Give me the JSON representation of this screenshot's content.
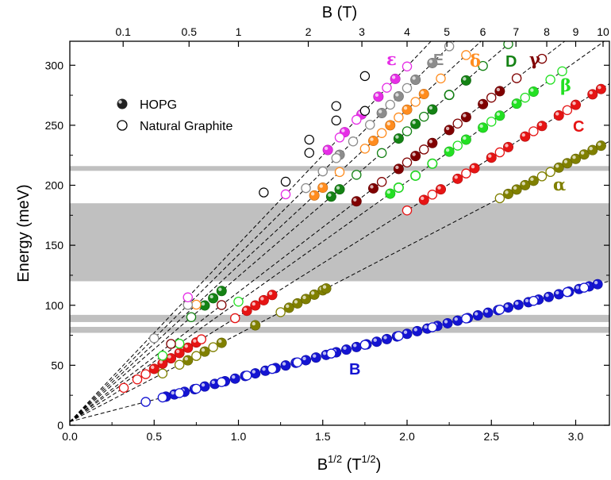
{
  "chart_data": {
    "type": "scatter",
    "title": "",
    "xlabel": "B",
    "xlabel_sup": "1/2",
    "xlabel_unit_open": " (T",
    "xlabel_unit_sup": "1/2",
    "xlabel_unit_close": ")",
    "ylabel": "Energy (meV)",
    "top_axis_label": "B (T)",
    "xlim": [
      0.0,
      3.2
    ],
    "ylim": [
      0,
      320
    ],
    "x_ticks": [
      0.0,
      0.5,
      1.0,
      1.5,
      2.0,
      2.5,
      3.0
    ],
    "x_tick_labels": [
      "0.0",
      "0.5",
      "1.0",
      "1.5",
      "2.0",
      "2.5",
      "3.0"
    ],
    "y_ticks": [
      0,
      50,
      100,
      150,
      200,
      250,
      300
    ],
    "y_tick_labels": [
      "0",
      "50",
      "100",
      "150",
      "200",
      "250",
      "300"
    ],
    "top_ticks": [
      0.1,
      0.5,
      1,
      2,
      3,
      4,
      5,
      6,
      7,
      8,
      9,
      10
    ],
    "top_tick_labels": [
      "0.1",
      "0.5",
      "1",
      "2",
      "3",
      "4",
      "5",
      "6",
      "7",
      "8",
      "9",
      "10"
    ],
    "legend": {
      "placement": "upper-left",
      "entries": [
        {
          "label": "HOPG",
          "marker": "filled-sphere"
        },
        {
          "label": "Natural Graphite",
          "marker": "open-circle"
        }
      ]
    },
    "excluded_bands": [
      [
        77,
        82
      ],
      [
        86,
        92
      ],
      [
        120,
        185
      ],
      [
        212,
        216
      ]
    ],
    "series": [
      {
        "name": "B",
        "label": "B",
        "color": "#1414d2",
        "slope": 36.6,
        "intercept": 3,
        "hopg_x": [
          0.57,
          0.62,
          0.68,
          0.74,
          0.8,
          0.86,
          0.92,
          0.98,
          1.04,
          1.1,
          1.16,
          1.22,
          1.28,
          1.34,
          1.4,
          1.46,
          1.52,
          1.58,
          1.64,
          1.7,
          1.76,
          1.82,
          1.88,
          1.94,
          2.0,
          2.06,
          2.12,
          2.18,
          2.24,
          2.3,
          2.36,
          2.42,
          2.48,
          2.54,
          2.6,
          2.66,
          2.72,
          2.78,
          2.84,
          2.9,
          2.96,
          3.02,
          3.08,
          3.13
        ],
        "ng_x": [
          0.45,
          0.55,
          0.65,
          0.75,
          0.9,
          1.05,
          1.2,
          1.35,
          1.55,
          1.75,
          1.95,
          2.15,
          2.35,
          2.55,
          2.75,
          2.95,
          3.05
        ]
      },
      {
        "name": "alpha",
        "label": "α",
        "color": "#808000",
        "slope": 73,
        "intercept": 3,
        "hopg_x": [
          0.7,
          0.8,
          0.9,
          1.1,
          1.3,
          1.35,
          1.4,
          1.45,
          1.5,
          1.52,
          2.6,
          2.65,
          2.7,
          2.75,
          2.9,
          2.95,
          3.0,
          3.05,
          3.1,
          3.15
        ],
        "ng_x": [
          0.55,
          0.65,
          0.75,
          0.85,
          1.25,
          2.55,
          2.8,
          2.85
        ]
      },
      {
        "name": "C",
        "label": "C",
        "color": "#e61414",
        "slope": 88,
        "intercept": 3,
        "hopg_x": [
          0.5,
          0.55,
          0.6,
          0.65,
          0.7,
          0.75,
          1.05,
          1.1,
          1.15,
          1.2,
          2.1,
          2.2,
          2.3,
          2.4,
          2.5,
          2.6,
          2.7,
          2.8,
          2.9,
          3.0,
          3.1,
          3.15
        ],
        "ng_x": [
          0.32,
          0.4,
          0.45,
          0.78,
          0.98,
          2.0,
          2.15,
          2.35,
          2.55,
          2.75,
          2.95
        ]
      },
      {
        "name": "beta",
        "label": "β",
        "color": "#22e022",
        "slope": 100,
        "intercept": 3,
        "hopg_x": [
          1.9,
          1.95,
          2.05,
          2.15,
          2.25,
          2.35,
          2.45,
          2.55,
          2.65,
          2.75
        ],
        "ng_x": [
          0.55,
          0.65,
          1.0,
          1.95,
          2.05,
          2.15,
          2.3,
          2.5,
          2.7,
          2.85,
          2.92
        ]
      },
      {
        "name": "gamma",
        "label": "γ",
        "color": "#800000",
        "slope": 108,
        "intercept": 3,
        "hopg_x": [
          1.7,
          1.8,
          1.95,
          2.05,
          2.15,
          2.25,
          2.35,
          2.45,
          2.55
        ],
        "ng_x": [
          0.6,
          0.9,
          1.85,
          2.0,
          2.1,
          2.3,
          2.5,
          2.65,
          2.8
        ]
      },
      {
        "name": "D",
        "label": "D",
        "color": "#148214",
        "slope": 121,
        "intercept": 3,
        "hopg_x": [
          0.8,
          0.85,
          0.9,
          1.55,
          1.6,
          1.95,
          2.05,
          2.15,
          2.25,
          2.35
        ],
        "ng_x": [
          0.72,
          1.7,
          1.85,
          2.0,
          2.1,
          2.25,
          2.45,
          2.6
        ]
      },
      {
        "name": "delta",
        "label": "δ",
        "color": "#ff8c1e",
        "slope": 130,
        "intercept": 3,
        "hopg_x": [
          1.45,
          1.5,
          1.8,
          1.9,
          2.0,
          2.1
        ],
        "ng_x": [
          0.75,
          1.6,
          1.75,
          1.85,
          1.95,
          2.05,
          2.2,
          2.35
        ]
      },
      {
        "name": "E",
        "label": "E",
        "color": "#8c8c8c",
        "slope": 139,
        "intercept": 3,
        "hopg_x": [
          1.6,
          1.85,
          1.95,
          2.05,
          2.15
        ],
        "ng_x": [
          0.5,
          0.7,
          1.4,
          1.5,
          1.58,
          1.68,
          1.78,
          1.9,
          2.0,
          2.25
        ]
      },
      {
        "name": "epsilon",
        "label": "ε",
        "color": "#e62ee6",
        "slope": 148,
        "intercept": 3,
        "hopg_x": [
          1.53,
          1.63,
          1.73,
          1.83,
          1.93
        ],
        "ng_x": [
          0.7,
          1.28,
          1.6,
          1.7,
          1.88,
          2.0
        ]
      },
      {
        "name": "extra",
        "label": "",
        "color": "#000000",
        "slope": 0,
        "intercept": 0,
        "hopg_x": [],
        "ng_x": [
          1.15,
          1.28,
          1.42,
          1.42,
          1.58,
          1.58,
          1.75,
          1.75
        ]
      },
      {
        "name": "extra-y",
        "label": "",
        "color": "#000000",
        "slope": 0,
        "intercept": 0,
        "hopg_x": [],
        "ng_y": [
          194,
          203,
          227,
          238,
          266,
          254,
          291,
          262
        ]
      }
    ]
  }
}
